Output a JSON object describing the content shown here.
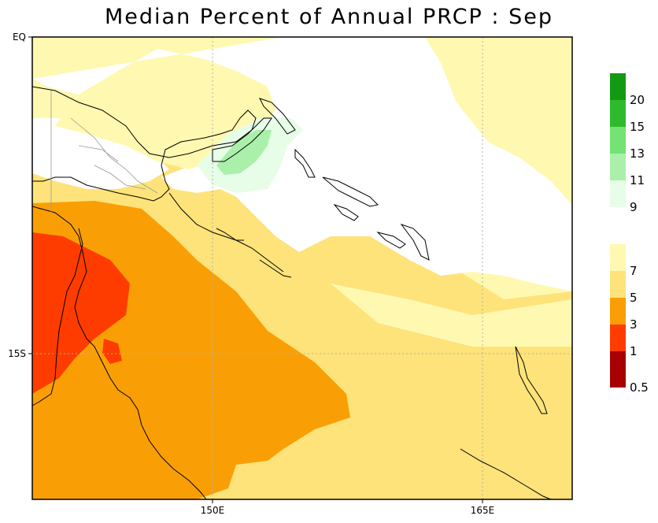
{
  "title": "Median Percent of Annual PRCP :   Sep",
  "axes": {
    "lat_labels": [
      "EQ",
      "15S"
    ],
    "lon_labels": [
      "150E",
      "165E"
    ]
  },
  "colorbar": {
    "segments": [
      {
        "color": "#139a13",
        "label": "20"
      },
      {
        "color": "#2dbb2d",
        "label": "15"
      },
      {
        "color": "#74e274",
        "label": "13"
      },
      {
        "color": "#aaf0aa",
        "label": "11"
      },
      {
        "color": "#e7fde7",
        "label": "9"
      },
      {
        "color": "#ffffff",
        "label": ""
      },
      {
        "color": "#fff8b0",
        "label": "7"
      },
      {
        "color": "#fde37a",
        "label": "5"
      },
      {
        "color": "#f99f05",
        "label": "3"
      },
      {
        "color": "#fe3c00",
        "label": "1"
      },
      {
        "color": "#a80000",
        "label": "0.5"
      }
    ]
  },
  "colors": {
    "white": "#ffffff",
    "light_yellow": "#fff8b0",
    "yellow": "#fde37a",
    "orange": "#f99f05",
    "red": "#fe3c00",
    "light_green": "#e7fde7",
    "green": "#aaf0aa"
  }
}
